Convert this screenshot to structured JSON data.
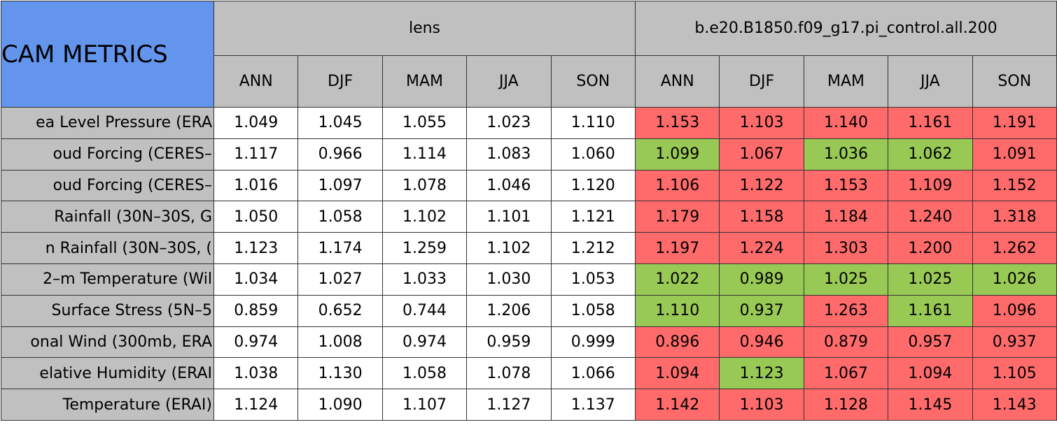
{
  "header": {
    "title": "CAM METRICS",
    "groups": [
      {
        "name": "lens",
        "seasons": [
          "ANN",
          "DJF",
          "MAM",
          "JJA",
          "SON"
        ]
      },
      {
        "name": "b.e20.B1850.f09_g17.pi_control.all.200",
        "seasons": [
          "ANN",
          "DJF",
          "MAM",
          "JJA",
          "SON"
        ]
      }
    ]
  },
  "colors": {
    "title": "#6495ed",
    "header": "#c0c0c0",
    "plain": "#ffffff",
    "r": "#ff6b6b",
    "g": "#99c955"
  },
  "rows": [
    {
      "label": "ea Level Pressure (ERA",
      "values": [
        "1.049",
        "1.045",
        "1.055",
        "1.023",
        "1.110",
        "1.153",
        "1.103",
        "1.140",
        "1.161",
        "1.191"
      ],
      "marks": [
        "r",
        "r",
        "r",
        "r",
        "r"
      ]
    },
    {
      "label": "oud Forcing (CERES–",
      "values": [
        "1.117",
        "0.966",
        "1.114",
        "1.083",
        "1.060",
        "1.099",
        "1.067",
        "1.036",
        "1.062",
        "1.091"
      ],
      "marks": [
        "g",
        "r",
        "g",
        "g",
        "r"
      ]
    },
    {
      "label": "oud Forcing (CERES–",
      "values": [
        "1.016",
        "1.097",
        "1.078",
        "1.046",
        "1.120",
        "1.106",
        "1.122",
        "1.153",
        "1.109",
        "1.152"
      ],
      "marks": [
        "r",
        "r",
        "r",
        "r",
        "r"
      ]
    },
    {
      "label": "Rainfall (30N–30S, G",
      "values": [
        "1.050",
        "1.058",
        "1.102",
        "1.101",
        "1.121",
        "1.179",
        "1.158",
        "1.184",
        "1.240",
        "1.318"
      ],
      "marks": [
        "r",
        "r",
        "r",
        "r",
        "r"
      ]
    },
    {
      "label": "n Rainfall (30N–30S, (",
      "values": [
        "1.123",
        "1.174",
        "1.259",
        "1.102",
        "1.212",
        "1.197",
        "1.224",
        "1.303",
        "1.200",
        "1.262"
      ],
      "marks": [
        "r",
        "r",
        "r",
        "r",
        "r"
      ]
    },
    {
      "label": "2–m Temperature (Wil",
      "values": [
        "1.034",
        "1.027",
        "1.033",
        "1.030",
        "1.053",
        "1.022",
        "0.989",
        "1.025",
        "1.025",
        "1.026"
      ],
      "marks": [
        "g",
        "g",
        "g",
        "g",
        "g"
      ]
    },
    {
      "label": "Surface Stress (5N–5",
      "values": [
        "0.859",
        "0.652",
        "0.744",
        "1.206",
        "1.058",
        "1.110",
        "0.937",
        "1.263",
        "1.161",
        "1.096"
      ],
      "marks": [
        "g",
        "g",
        "r",
        "g",
        "r"
      ]
    },
    {
      "label": "onal Wind (300mb, ERA",
      "values": [
        "0.974",
        "1.008",
        "0.974",
        "0.959",
        "0.999",
        "0.896",
        "0.946",
        "0.879",
        "0.957",
        "0.937"
      ],
      "marks": [
        "r",
        "r",
        "r",
        "r",
        "r"
      ]
    },
    {
      "label": "elative Humidity (ERAI",
      "values": [
        "1.038",
        "1.130",
        "1.058",
        "1.078",
        "1.066",
        "1.094",
        "1.123",
        "1.067",
        "1.094",
        "1.105"
      ],
      "marks": [
        "r",
        "g",
        "r",
        "r",
        "r"
      ]
    },
    {
      "label": "Temperature (ERAI)",
      "values": [
        "1.124",
        "1.090",
        "1.107",
        "1.127",
        "1.137",
        "1.142",
        "1.103",
        "1.128",
        "1.145",
        "1.143"
      ],
      "marks": [
        "r",
        "r",
        "r",
        "r",
        "r"
      ]
    }
  ]
}
